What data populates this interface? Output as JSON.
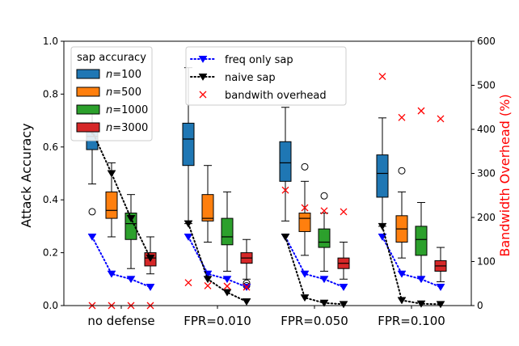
{
  "chart_data": {
    "type": "box",
    "categories": [
      "no defense",
      "FPR=0.010",
      "FPR=0.050",
      "FPR=0.100"
    ],
    "ylabel": "Attack Accuracy",
    "ylabel2": "Bandwidth Overhead (%)",
    "ylim": [
      0,
      1.0
    ],
    "y2lim": [
      0,
      600
    ],
    "yticks": [
      "0.0",
      "0.2",
      "0.4",
      "0.6",
      "0.8",
      "1.0"
    ],
    "y2ticks": [
      "0",
      "100",
      "200",
      "300",
      "400",
      "500",
      "600"
    ],
    "legend_title": "sap accuracy",
    "series": [
      {
        "name": "n=100",
        "n_label": "100",
        "color": "#1f77b4",
        "boxes": [
          {
            "whislo": 0.46,
            "q1": 0.59,
            "med": 0.64,
            "q3": 0.69,
            "whishi": 0.75,
            "fliers": [
              0.355
            ]
          },
          {
            "whislo": 0.31,
            "q1": 0.53,
            "med": 0.63,
            "q3": 0.69,
            "whishi": 0.9,
            "fliers": []
          },
          {
            "whislo": 0.32,
            "q1": 0.47,
            "med": 0.54,
            "q3": 0.62,
            "whishi": 0.75,
            "fliers": []
          },
          {
            "whislo": 0.3,
            "q1": 0.41,
            "med": 0.5,
            "q3": 0.57,
            "whishi": 0.71,
            "fliers": []
          }
        ]
      },
      {
        "name": "n=500",
        "n_label": "500",
        "color": "#ff7f0e",
        "boxes": [
          {
            "whislo": 0.26,
            "q1": 0.33,
            "med": 0.36,
            "q3": 0.43,
            "whishi": 0.54,
            "fliers": []
          },
          {
            "whislo": 0.24,
            "q1": 0.32,
            "med": 0.33,
            "q3": 0.42,
            "whishi": 0.53,
            "fliers": []
          },
          {
            "whislo": 0.19,
            "q1": 0.28,
            "med": 0.33,
            "q3": 0.35,
            "whishi": 0.47,
            "fliers": [
              0.525
            ]
          },
          {
            "whislo": 0.18,
            "q1": 0.24,
            "med": 0.29,
            "q3": 0.34,
            "whishi": 0.43,
            "fliers": [
              0.51
            ]
          }
        ]
      },
      {
        "name": "n=1000",
        "n_label": "1000",
        "color": "#2ca02c",
        "boxes": [
          {
            "whislo": 0.14,
            "q1": 0.25,
            "med": 0.31,
            "q3": 0.35,
            "whishi": 0.42,
            "fliers": []
          },
          {
            "whislo": 0.13,
            "q1": 0.23,
            "med": 0.26,
            "q3": 0.33,
            "whishi": 0.43,
            "fliers": []
          },
          {
            "whislo": 0.13,
            "q1": 0.22,
            "med": 0.24,
            "q3": 0.29,
            "whishi": 0.35,
            "fliers": [
              0.415
            ]
          },
          {
            "whislo": 0.11,
            "q1": 0.19,
            "med": 0.25,
            "q3": 0.3,
            "whishi": 0.39,
            "fliers": []
          }
        ]
      },
      {
        "name": "n=3000",
        "n_label": "3000",
        "color": "#d62728",
        "boxes": [
          {
            "whislo": 0.12,
            "q1": 0.15,
            "med": 0.18,
            "q3": 0.2,
            "whishi": 0.26,
            "fliers": []
          },
          {
            "whislo": 0.1,
            "q1": 0.16,
            "med": 0.18,
            "q3": 0.2,
            "whishi": 0.25,
            "fliers": [
              0.085,
              0.075
            ]
          },
          {
            "whislo": 0.1,
            "q1": 0.14,
            "med": 0.16,
            "q3": 0.18,
            "whishi": 0.24,
            "fliers": []
          },
          {
            "whislo": 0.09,
            "q1": 0.13,
            "med": 0.15,
            "q3": 0.17,
            "whishi": 0.22,
            "fliers": []
          }
        ]
      }
    ],
    "lines": [
      {
        "name": "freq only sap",
        "color": "#0000ff",
        "style": "dotted",
        "marker": "triangle-down",
        "values": [
          [
            0.26,
            0.12,
            0.1,
            0.07
          ],
          [
            0.26,
            0.12,
            0.1,
            0.07
          ],
          [
            0.26,
            0.12,
            0.1,
            0.07
          ],
          [
            0.26,
            0.12,
            0.1,
            0.07
          ]
        ]
      },
      {
        "name": "naive sap",
        "color": "#000000",
        "style": "dotted",
        "marker": "triangle-down",
        "values": [
          [
            0.66,
            0.5,
            0.33,
            0.18
          ],
          [
            0.31,
            0.1,
            0.05,
            0.015
          ],
          [
            0.26,
            0.03,
            0.01,
            0.005
          ],
          [
            0.3,
            0.02,
            0.007,
            0.005
          ]
        ]
      }
    ],
    "scatter": {
      "name": "bandwith overhead",
      "color": "#ff0000",
      "marker": "x",
      "axis": "right",
      "values": [
        [
          0,
          0,
          0,
          0
        ],
        [
          52,
          45,
          44,
          42
        ],
        [
          262,
          222,
          215,
          213
        ],
        [
          520,
          427,
          442,
          424
        ]
      ]
    }
  }
}
